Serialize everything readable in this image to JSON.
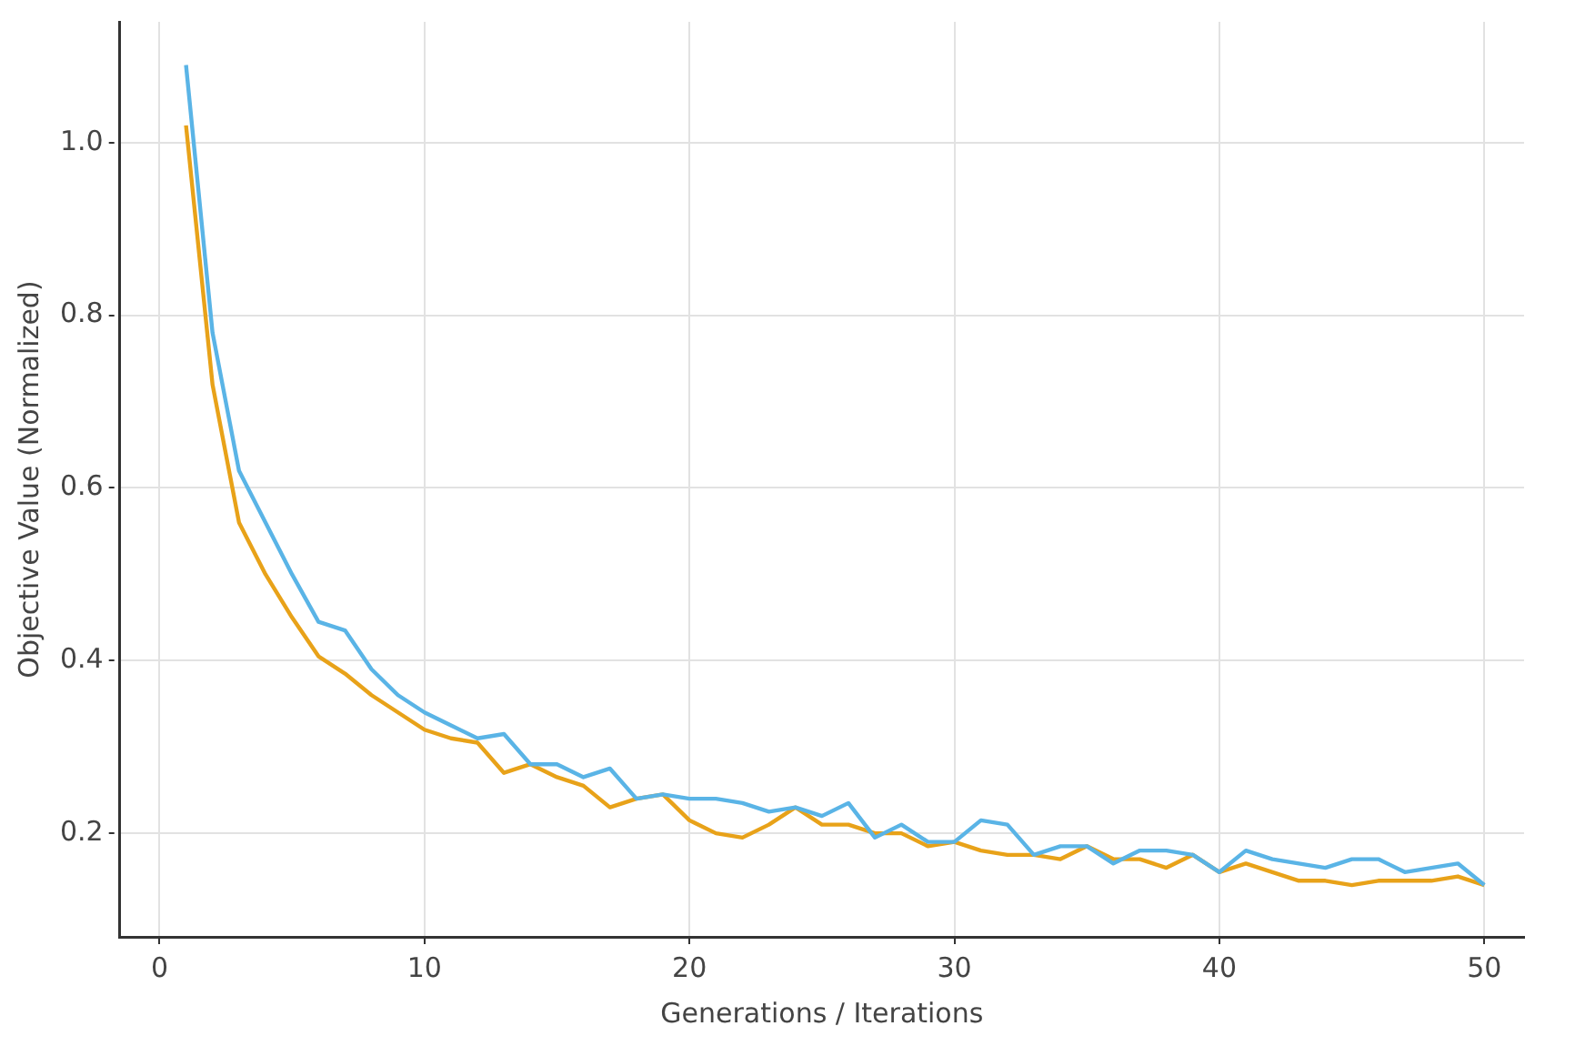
{
  "chart_data": {
    "type": "line",
    "xlabel": "Generations / Iterations",
    "ylabel": "Objective Value (Normalized)",
    "x": [
      1,
      2,
      3,
      4,
      5,
      6,
      7,
      8,
      9,
      10,
      11,
      12,
      13,
      14,
      15,
      16,
      17,
      18,
      19,
      20,
      21,
      22,
      23,
      24,
      25,
      26,
      27,
      28,
      29,
      30,
      31,
      32,
      33,
      34,
      35,
      36,
      37,
      38,
      39,
      40,
      41,
      42,
      43,
      44,
      45,
      46,
      47,
      48,
      49,
      50
    ],
    "series": [
      {
        "color": "#5ab4e6",
        "values": [
          1.09,
          0.78,
          0.62,
          0.56,
          0.5,
          0.445,
          0.435,
          0.39,
          0.36,
          0.34,
          0.325,
          0.31,
          0.315,
          0.28,
          0.28,
          0.265,
          0.275,
          0.24,
          0.245,
          0.24,
          0.24,
          0.235,
          0.225,
          0.23,
          0.22,
          0.235,
          0.195,
          0.21,
          0.19,
          0.19,
          0.215,
          0.21,
          0.175,
          0.185,
          0.185,
          0.165,
          0.18,
          0.18,
          0.175,
          0.155,
          0.18,
          0.17,
          0.165,
          0.16,
          0.17,
          0.17,
          0.155,
          0.16,
          0.165,
          0.14
        ]
      },
      {
        "color": "#e8a219",
        "values": [
          1.02,
          0.72,
          0.56,
          0.5,
          0.45,
          0.405,
          0.385,
          0.36,
          0.34,
          0.32,
          0.31,
          0.305,
          0.27,
          0.28,
          0.265,
          0.255,
          0.23,
          0.24,
          0.245,
          0.215,
          0.2,
          0.195,
          0.21,
          0.23,
          0.21,
          0.21,
          0.2,
          0.2,
          0.185,
          0.19,
          0.18,
          0.175,
          0.175,
          0.17,
          0.185,
          0.17,
          0.17,
          0.16,
          0.175,
          0.155,
          0.165,
          0.155,
          0.145,
          0.145,
          0.14,
          0.145,
          0.145,
          0.145,
          0.15,
          0.14
        ]
      }
    ],
    "xlim": [
      -1.5,
      51.5
    ],
    "xticks": [
      0,
      10,
      20,
      30,
      40,
      50
    ],
    "ylim": [
      0.08,
      1.14
    ],
    "yticks": [
      {
        "value": 0.2,
        "label": "0.2"
      },
      {
        "value": 0.4,
        "label": "0.4"
      },
      {
        "value": 0.6,
        "label": "0.6"
      },
      {
        "value": 0.8,
        "label": "0.8"
      },
      {
        "value": 1,
        "label": "1.0"
      }
    ],
    "grid": true,
    "legend": false,
    "marker": "none",
    "line_style": "solid"
  }
}
